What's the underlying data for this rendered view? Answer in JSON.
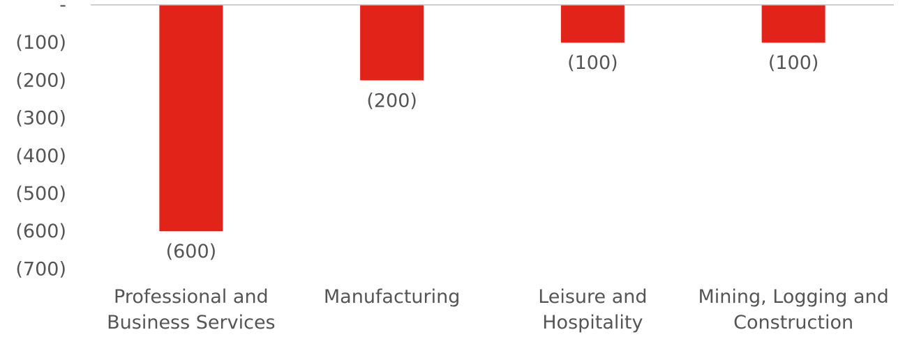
{
  "chart_data": {
    "type": "bar",
    "title": "",
    "xlabel": "",
    "ylabel": "",
    "categories": [
      [
        "Professional and",
        "Business Services"
      ],
      [
        "Manufacturing"
      ],
      [
        "Leisure and",
        "Hospitality"
      ],
      [
        "Mining, Logging and",
        "Construction"
      ]
    ],
    "values": [
      -600,
      -200,
      -100,
      -100
    ],
    "data_labels": [
      "(600)",
      "(200)",
      "(100)",
      "(100)"
    ],
    "ylim": [
      -700,
      0
    ],
    "y_ticks": [
      0,
      -100,
      -200,
      -300,
      -400,
      -500,
      -600,
      -700
    ],
    "y_tick_labels": [
      "-",
      "(100)",
      "(200)",
      "(300)",
      "(400)",
      "(500)",
      "(600)",
      "(700)"
    ],
    "grid": false,
    "legend": "none",
    "bar_color": "#e2231a",
    "axis_line_color": "#bfbfbf",
    "text_color": "#555555"
  }
}
